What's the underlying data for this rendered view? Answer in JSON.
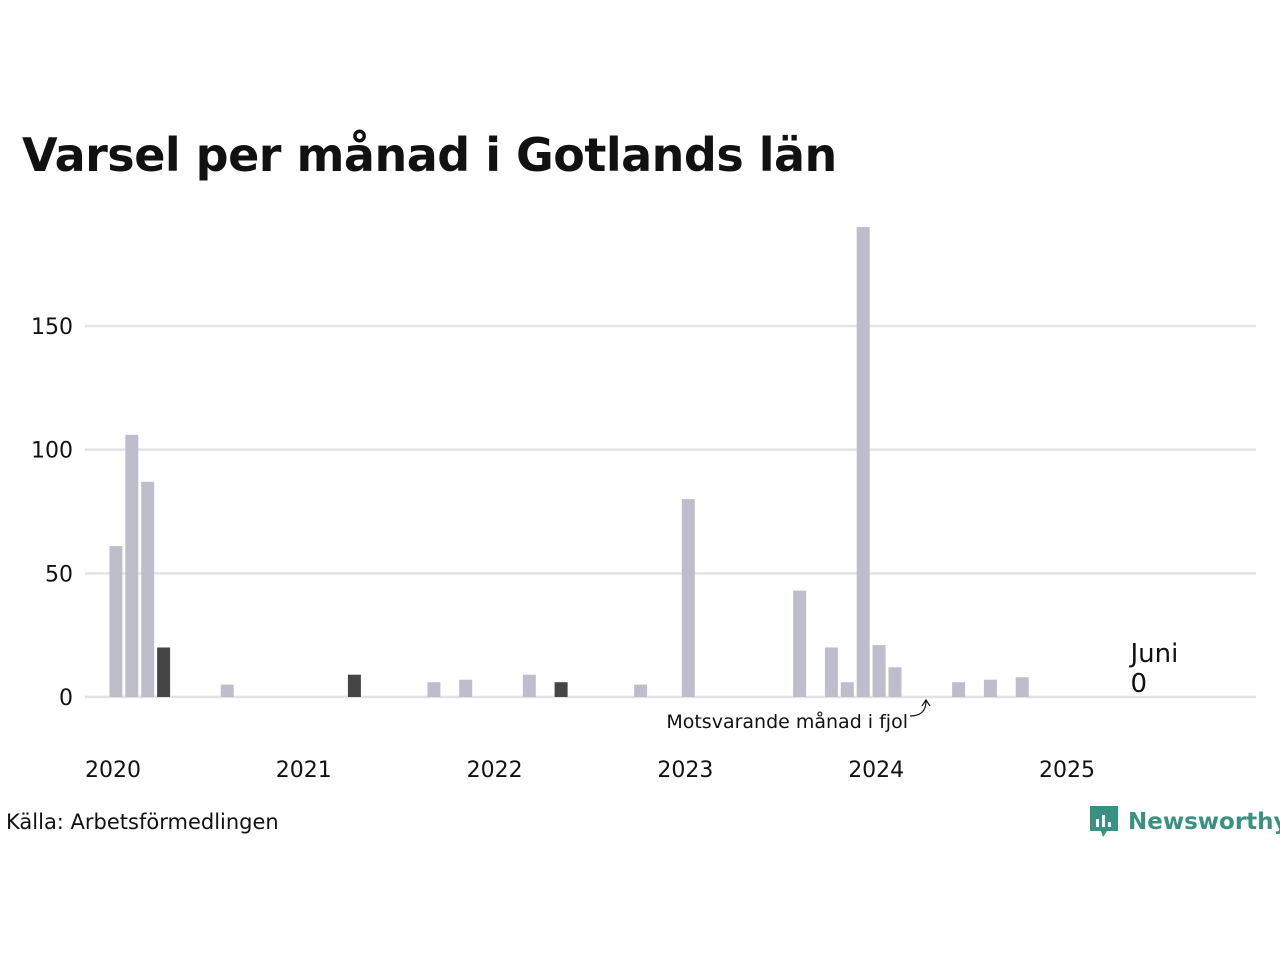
{
  "title": "Varsel per månad i Gotlands län",
  "source": "Källa: Arbetsförmedlingen",
  "brand": {
    "name": "Newsworthy",
    "color": "#3a9182",
    "icon": "newsworthy-logo-icon"
  },
  "colors": {
    "bar": "#bebdcc",
    "highlight": "#454545",
    "grid": "#e3e3e6",
    "text": "#111111"
  },
  "chart_data": {
    "type": "bar",
    "xlabel": "",
    "ylabel": "",
    "ylim": [
      0,
      190
    ],
    "yticks": [
      0,
      50,
      100,
      150
    ],
    "x_tick_labels": [
      "2020",
      "2021",
      "2022",
      "2023",
      "2024",
      "2025"
    ],
    "x_range": [
      "2020-01",
      "2025-12"
    ],
    "grid": true,
    "series": [
      {
        "name": "",
        "data": [
          {
            "month": "2020-02",
            "value": 61
          },
          {
            "month": "2020-03",
            "value": 106
          },
          {
            "month": "2020-04",
            "value": 87
          },
          {
            "month": "2020-05",
            "value": 20,
            "highlight": true
          },
          {
            "month": "2020-09",
            "value": 5
          },
          {
            "month": "2021-05",
            "value": 9,
            "highlight": true
          },
          {
            "month": "2021-10",
            "value": 6
          },
          {
            "month": "2021-12",
            "value": 7
          },
          {
            "month": "2022-04",
            "value": 9
          },
          {
            "month": "2022-06",
            "value": 6,
            "highlight": true
          },
          {
            "month": "2022-11",
            "value": 5
          },
          {
            "month": "2023-02",
            "value": 80
          },
          {
            "month": "2023-09",
            "value": 43
          },
          {
            "month": "2023-11",
            "value": 20
          },
          {
            "month": "2023-12",
            "value": 6
          },
          {
            "month": "2024-01",
            "value": 190
          },
          {
            "month": "2024-02",
            "value": 21
          },
          {
            "month": "2024-03",
            "value": 12
          },
          {
            "month": "2024-07",
            "value": 6
          },
          {
            "month": "2024-09",
            "value": 7
          },
          {
            "month": "2024-11",
            "value": 8
          }
        ]
      }
    ],
    "annotations": {
      "current": {
        "month": "2025-06",
        "label": "Juni",
        "value": "0"
      },
      "previous_year": {
        "month": "2024-06",
        "label": "Motsvarande månad i fjol"
      }
    }
  }
}
